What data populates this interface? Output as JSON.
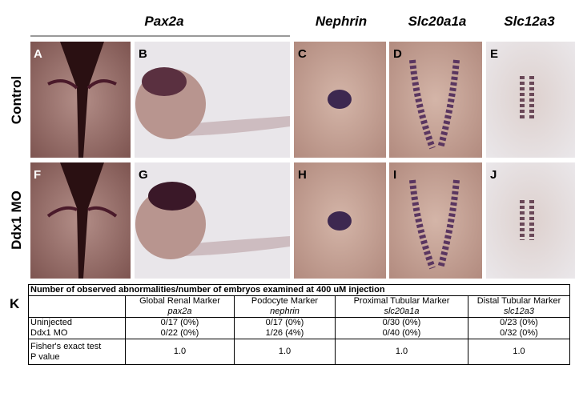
{
  "column_headers": [
    "Pax2a",
    "Nephrin",
    "Slc20a1a",
    "Slc12a3"
  ],
  "row_labels": [
    "Control",
    "Ddx1 MO"
  ],
  "panels": [
    "A",
    "B",
    "C",
    "D",
    "E",
    "F",
    "G",
    "H",
    "I",
    "J"
  ],
  "table": {
    "label": "K",
    "title": "Number of observed abnormalities/number of embryos examined at 400 uM injection",
    "columns": [
      {
        "name": "Global Renal Marker",
        "gene": "pax2a"
      },
      {
        "name": "Podocyte Marker",
        "gene": "nephrin"
      },
      {
        "name": "Proximal Tubular  Marker",
        "gene": "slc20a1a"
      },
      {
        "name": "Distal Tubular Marker",
        "gene": "slc12a3"
      }
    ],
    "rows": [
      {
        "label": [
          "Uninjected"
        ],
        "cells": [
          "0/17 (0%)",
          "0/17 (0%)",
          "0/30 (0%)",
          "0/23 (0%)"
        ]
      },
      {
        "label": [
          "Ddx1 MO"
        ],
        "cells": [
          "0/22 (0%)",
          "1/26 (4%)",
          "0/40 (0%)",
          "0/32 (0%)"
        ]
      },
      {
        "label": [
          "Fisher's exact test",
          "P value"
        ],
        "cells": [
          "1.0",
          "1.0",
          "1.0",
          "1.0"
        ]
      }
    ]
  }
}
